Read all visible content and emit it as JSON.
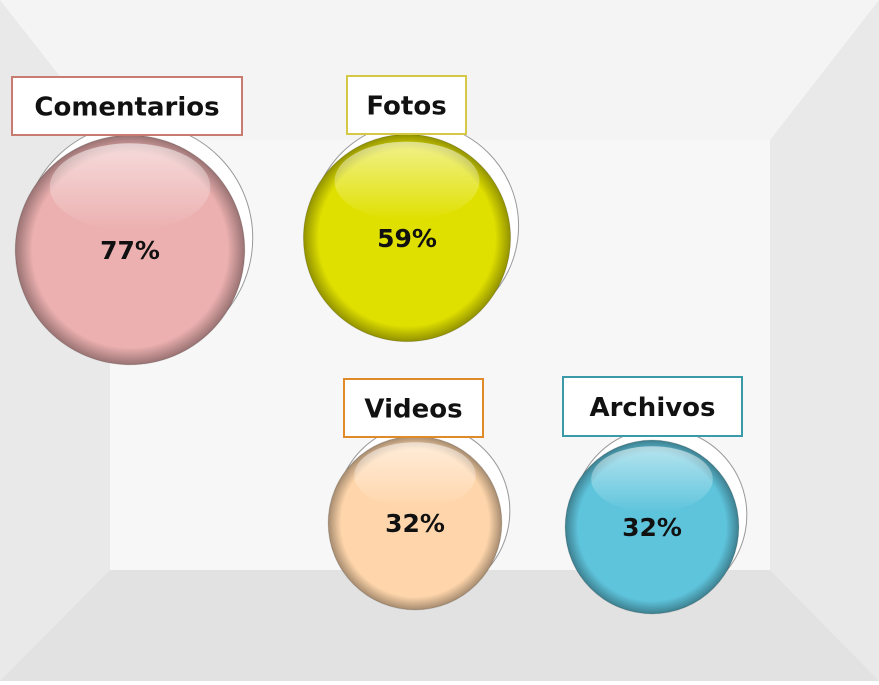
{
  "chart_data": {
    "type": "bubble",
    "categories": [
      "Comentarios",
      "Fotos",
      "Videos",
      "Archivos"
    ],
    "values": [
      77,
      59,
      32,
      32
    ],
    "value_labels": [
      "77%",
      "59%",
      "32%",
      "32%"
    ],
    "colors": [
      "#ecb0b0",
      "#e0e000",
      "#ffd6ab",
      "#5ec4dc"
    ],
    "label_colors": [
      "#c87b70",
      "#d4c846",
      "#e08a2a",
      "#3a9aa8"
    ]
  }
}
